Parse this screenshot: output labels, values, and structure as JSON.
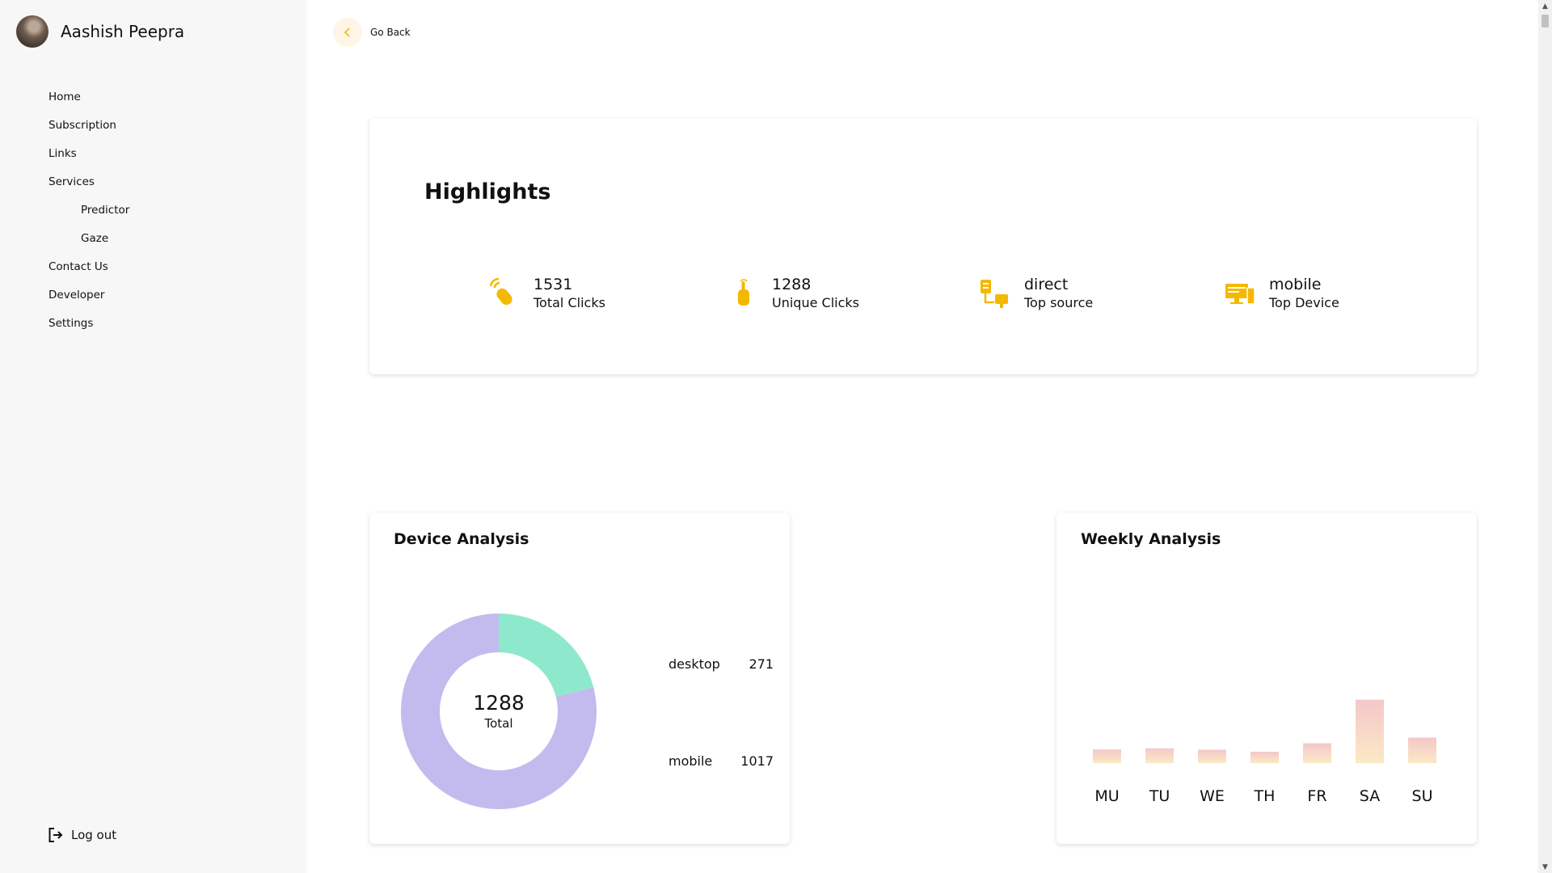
{
  "sidebar": {
    "user_name": "Aashish Peepra",
    "items": [
      {
        "label": "Home",
        "sub": false
      },
      {
        "label": "Subscription",
        "sub": false
      },
      {
        "label": "Links",
        "sub": false
      },
      {
        "label": "Services",
        "sub": false
      },
      {
        "label": "Predictor",
        "sub": true
      },
      {
        "label": "Gaze",
        "sub": true
      },
      {
        "label": "Contact Us",
        "sub": false
      },
      {
        "label": "Developer",
        "sub": false
      },
      {
        "label": "Settings",
        "sub": false
      }
    ],
    "logout_label": "Log out"
  },
  "header": {
    "back_label": "Go Back"
  },
  "highlights": {
    "title": "Highlights",
    "stats": [
      {
        "value": "1531",
        "label": "Total Clicks",
        "icon": "click-icon"
      },
      {
        "value": "1288",
        "label": "Unique Clicks",
        "icon": "tap-icon"
      },
      {
        "value": "direct",
        "label": "Top source",
        "icon": "network-icon"
      },
      {
        "value": "mobile",
        "label": "Top Device",
        "icon": "devices-icon"
      }
    ],
    "accent_color": "#f5b800"
  },
  "device_analysis": {
    "title": "Device Analysis",
    "total": "1288",
    "total_label": "Total",
    "chart_data": {
      "type": "pie",
      "categories": [
        "desktop",
        "mobile"
      ],
      "values": [
        271,
        1017
      ],
      "colors": [
        "#8ee9cc",
        "#c3bbed"
      ]
    }
  },
  "weekly_analysis": {
    "title": "Weekly Analysis",
    "chart_data": {
      "type": "bar",
      "categories": [
        "MU",
        "TU",
        "WE",
        "TH",
        "FR",
        "SA",
        "SU"
      ],
      "values": [
        120,
        130,
        118,
        100,
        175,
        560,
        225
      ],
      "ylim": [
        0,
        600
      ],
      "colors": [
        "#f4c7c9",
        "#fbe9c6"
      ]
    }
  }
}
